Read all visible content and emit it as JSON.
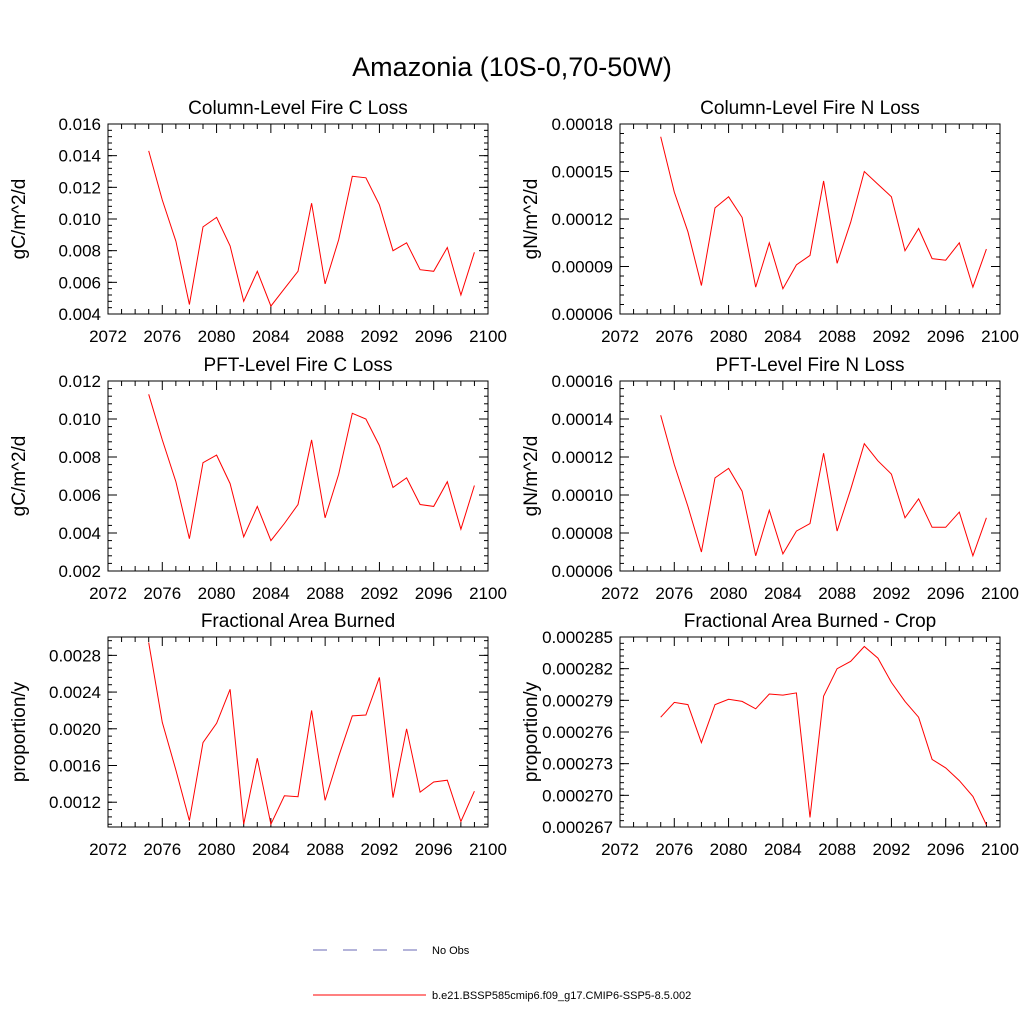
{
  "title": "Amazonia (10S-0,70-50W)",
  "legend": [
    {
      "label": "No Obs",
      "style": "dashed",
      "color": "#6a6ab4"
    },
    {
      "label": "b.e21.BSSP585cmip6.f09_g17.CMIP6-SSP5-8.5.002",
      "style": "solid",
      "color": "#ff0000"
    }
  ],
  "chart_data": [
    {
      "type": "line",
      "title": "Column-Level Fire C Loss",
      "ylabel": "gC/m^2/d",
      "xlim": [
        2072,
        2100
      ],
      "ylim": [
        0.004,
        0.016
      ],
      "xticks": [
        "2072",
        "2076",
        "2080",
        "2084",
        "2088",
        "2092",
        "2096",
        "2100"
      ],
      "yticks": [
        "0.004",
        "0.006",
        "0.008",
        "0.010",
        "0.012",
        "0.014",
        "0.016"
      ],
      "x": [
        2075,
        2076,
        2077,
        2078,
        2079,
        2080,
        2081,
        2082,
        2083,
        2084,
        2085,
        2086,
        2087,
        2088,
        2089,
        2090,
        2091,
        2092,
        2093,
        2094,
        2095,
        2096,
        2097,
        2098,
        2099
      ],
      "series": [
        {
          "name": "b.e21.BSSP585cmip6.f09_g17.CMIP6-SSP5-8.5.002",
          "color": "#ff0000",
          "values": [
            0.0143,
            0.0112,
            0.0086,
            0.0046,
            0.0095,
            0.0101,
            0.0083,
            0.0048,
            0.0067,
            0.0045,
            0.0056,
            0.0067,
            0.011,
            0.0059,
            0.0087,
            0.0127,
            0.0126,
            0.0109,
            0.008,
            0.0085,
            0.0068,
            0.0067,
            0.0082,
            0.0052,
            0.0079
          ]
        }
      ]
    },
    {
      "type": "line",
      "title": "Column-Level Fire N Loss",
      "ylabel": "gN/m^2/d",
      "xlim": [
        2072,
        2100
      ],
      "ylim": [
        6e-05,
        0.00018
      ],
      "xticks": [
        "2072",
        "2076",
        "2080",
        "2084",
        "2088",
        "2092",
        "2096",
        "2100"
      ],
      "yticks": [
        "0.00006",
        "0.00009",
        "0.00012",
        "0.00015",
        "0.00018"
      ],
      "x": [
        2075,
        2076,
        2077,
        2078,
        2079,
        2080,
        2081,
        2082,
        2083,
        2084,
        2085,
        2086,
        2087,
        2088,
        2089,
        2090,
        2091,
        2092,
        2093,
        2094,
        2095,
        2096,
        2097,
        2098,
        2099
      ],
      "series": [
        {
          "name": "b.e21.BSSP585cmip6.f09_g17.CMIP6-SSP5-8.5.002",
          "color": "#ff0000",
          "values": [
            0.000172,
            0.000137,
            0.000112,
            7.8e-05,
            0.000127,
            0.000134,
            0.000121,
            7.7e-05,
            0.000105,
            7.6e-05,
            9.1e-05,
            9.7e-05,
            0.000144,
            9.2e-05,
            0.000118,
            0.00015,
            0.000142,
            0.000134,
            0.0001,
            0.000114,
            9.5e-05,
            9.4e-05,
            0.000105,
            7.7e-05,
            0.000101
          ]
        }
      ]
    },
    {
      "type": "line",
      "title": "PFT-Level Fire C Loss",
      "ylabel": "gC/m^2/d",
      "xlim": [
        2072,
        2100
      ],
      "ylim": [
        0.002,
        0.012
      ],
      "xticks": [
        "2072",
        "2076",
        "2080",
        "2084",
        "2088",
        "2092",
        "2096",
        "2100"
      ],
      "yticks": [
        "0.002",
        "0.004",
        "0.006",
        "0.008",
        "0.010",
        "0.012"
      ],
      "x": [
        2075,
        2076,
        2077,
        2078,
        2079,
        2080,
        2081,
        2082,
        2083,
        2084,
        2085,
        2086,
        2087,
        2088,
        2089,
        2090,
        2091,
        2092,
        2093,
        2094,
        2095,
        2096,
        2097,
        2098,
        2099
      ],
      "series": [
        {
          "name": "b.e21.BSSP585cmip6.f09_g17.CMIP6-SSP5-8.5.002",
          "color": "#ff0000",
          "values": [
            0.0113,
            0.0089,
            0.0067,
            0.0037,
            0.0077,
            0.0081,
            0.0066,
            0.0038,
            0.0054,
            0.0036,
            0.0045,
            0.0055,
            0.0089,
            0.0048,
            0.0071,
            0.0103,
            0.01,
            0.0086,
            0.0064,
            0.0069,
            0.0055,
            0.0054,
            0.0067,
            0.0042,
            0.0065
          ]
        }
      ]
    },
    {
      "type": "line",
      "title": "PFT-Level Fire N Loss",
      "ylabel": "gN/m^2/d",
      "xlim": [
        2072,
        2100
      ],
      "ylim": [
        6e-05,
        0.00016
      ],
      "xticks": [
        "2072",
        "2076",
        "2080",
        "2084",
        "2088",
        "2092",
        "2096",
        "2100"
      ],
      "yticks": [
        "0.00006",
        "0.00008",
        "0.00010",
        "0.00012",
        "0.00014",
        "0.00016"
      ],
      "x": [
        2075,
        2076,
        2077,
        2078,
        2079,
        2080,
        2081,
        2082,
        2083,
        2084,
        2085,
        2086,
        2087,
        2088,
        2089,
        2090,
        2091,
        2092,
        2093,
        2094,
        2095,
        2096,
        2097,
        2098,
        2099
      ],
      "series": [
        {
          "name": "b.e21.BSSP585cmip6.f09_g17.CMIP6-SSP5-8.5.002",
          "color": "#ff0000",
          "values": [
            0.000142,
            0.000116,
            9.4e-05,
            7e-05,
            0.000109,
            0.000114,
            0.000102,
            6.8e-05,
            9.2e-05,
            6.9e-05,
            8.1e-05,
            8.5e-05,
            0.000122,
            8.1e-05,
            0.000103,
            0.000127,
            0.000118,
            0.000111,
            8.8e-05,
            9.8e-05,
            8.3e-05,
            8.3e-05,
            9.1e-05,
            6.8e-05,
            8.8e-05
          ]
        }
      ]
    },
    {
      "type": "line",
      "title": "Fractional Area Burned",
      "ylabel": "proportion/y",
      "xlim": [
        2072,
        2100
      ],
      "ylim": [
        0.00093,
        0.003
      ],
      "xticks": [
        "2072",
        "2076",
        "2080",
        "2084",
        "2088",
        "2092",
        "2096",
        "2100"
      ],
      "yticks": [
        "0.0012",
        "0.0016",
        "0.0020",
        "0.0024",
        "0.0028"
      ],
      "x": [
        2075,
        2076,
        2077,
        2078,
        2079,
        2080,
        2081,
        2082,
        2083,
        2084,
        2085,
        2086,
        2087,
        2088,
        2089,
        2090,
        2091,
        2092,
        2093,
        2094,
        2095,
        2096,
        2097,
        2098,
        2099
      ],
      "series": [
        {
          "name": "b.e21.BSSP585cmip6.f09_g17.CMIP6-SSP5-8.5.002",
          "color": "#ff0000",
          "values": [
            0.00294,
            0.00207,
            0.00155,
            0.001,
            0.00185,
            0.00206,
            0.00243,
            0.00096,
            0.00168,
            0.00096,
            0.00127,
            0.00126,
            0.0022,
            0.00122,
            0.0017,
            0.00214,
            0.00215,
            0.00256,
            0.00125,
            0.002,
            0.00131,
            0.00142,
            0.00144,
            0.00099,
            0.00132
          ]
        }
      ]
    },
    {
      "type": "line",
      "title": "Fractional Area Burned - Crop",
      "ylabel": "proportion/y",
      "xlim": [
        2072,
        2100
      ],
      "ylim": [
        0.000267,
        0.000285
      ],
      "xticks": [
        "2072",
        "2076",
        "2080",
        "2084",
        "2088",
        "2092",
        "2096",
        "2100"
      ],
      "yticks": [
        "0.000267",
        "0.000270",
        "0.000273",
        "0.000276",
        "0.000279",
        "0.000282",
        "0.000285"
      ],
      "x": [
        2075,
        2076,
        2077,
        2078,
        2079,
        2080,
        2081,
        2082,
        2083,
        2084,
        2085,
        2086,
        2087,
        2088,
        2089,
        2090,
        2091,
        2092,
        2093,
        2094,
        2095,
        2096,
        2097,
        2098,
        2099
      ],
      "series": [
        {
          "name": "b.e21.BSSP585cmip6.f09_g17.CMIP6-SSP5-8.5.002",
          "color": "#ff0000",
          "values": [
            0.0002774,
            0.0002788,
            0.0002786,
            0.000275,
            0.0002786,
            0.0002791,
            0.0002789,
            0.0002782,
            0.0002796,
            0.0002795,
            0.0002797,
            0.0002679,
            0.0002794,
            0.000282,
            0.0002827,
            0.0002841,
            0.000283,
            0.0002807,
            0.0002789,
            0.0002774,
            0.0002734,
            0.0002726,
            0.0002714,
            0.0002699,
            0.0002672
          ]
        }
      ]
    }
  ]
}
